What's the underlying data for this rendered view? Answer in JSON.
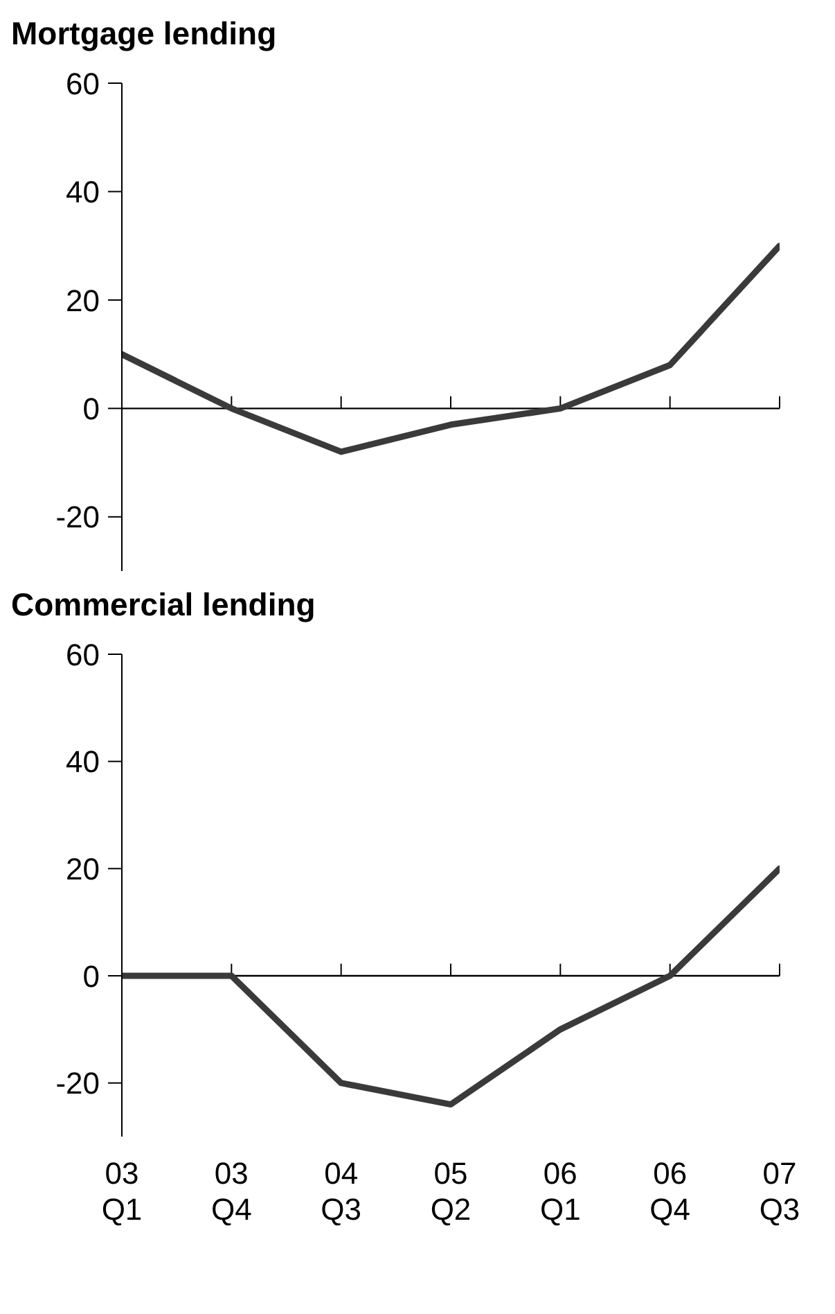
{
  "chart_data": [
    {
      "type": "line",
      "title": "Mortgage lending",
      "categories": [
        null,
        null,
        null,
        null,
        null,
        null,
        null
      ],
      "series": [
        {
          "color": "#3a3a3a",
          "values": [
            10,
            0,
            -8,
            -3,
            0,
            8,
            30
          ]
        }
      ],
      "ylim": [
        -30,
        60
      ],
      "yticks": [
        -20,
        0,
        20,
        40,
        60
      ],
      "tick_labels": "y",
      "grid": false,
      "legend": false,
      "marker": "none",
      "line_style": "solid",
      "ref_lines": [
        {
          "axis": "y",
          "value": 0
        }
      ]
    },
    {
      "type": "line",
      "title": "Commercial lending",
      "categories": [
        "03 Q1",
        "03 Q4",
        "04 Q3",
        "05 Q2",
        "06 Q1",
        "06 Q4",
        "07 Q3"
      ],
      "series": [
        {
          "color": "#3a3a3a",
          "values": [
            0,
            0,
            -20,
            -24,
            -10,
            0,
            20
          ]
        }
      ],
      "ylim": [
        -30,
        60
      ],
      "yticks": [
        -20,
        0,
        20,
        40,
        60
      ],
      "grid": false,
      "legend": false,
      "marker": "none",
      "line_style": "solid",
      "ref_lines": [
        {
          "axis": "y",
          "value": 0
        }
      ]
    }
  ]
}
